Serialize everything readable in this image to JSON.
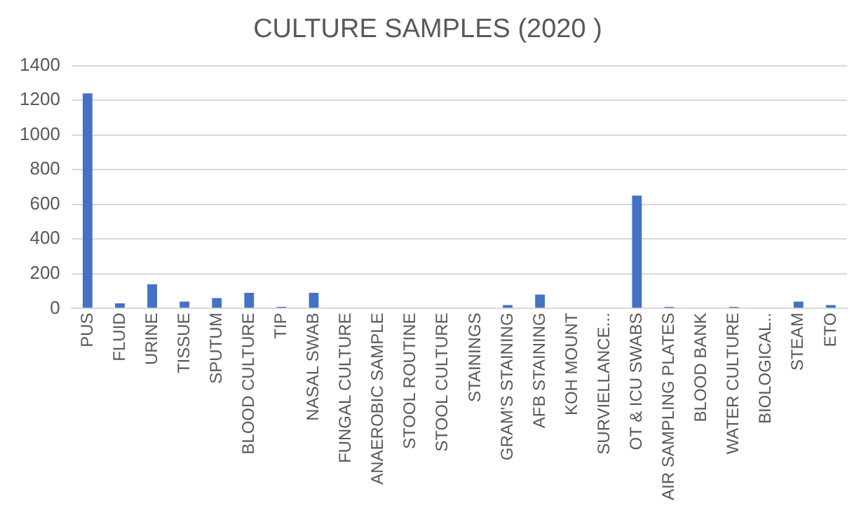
{
  "chart_data": {
    "type": "bar",
    "title": "CULTURE SAMPLES (2020 )",
    "categories": [
      "PUS",
      "FLUID",
      "URINE",
      "TISSUE",
      "SPUTUM",
      "BLOOD CULTURE",
      "TIP",
      "NASAL SWAB",
      "FUNGAL CULTURE",
      "ANAEROBIC SAMPLE",
      "STOOL ROUTINE",
      "STOOL CULTURE",
      "STAININGS",
      "GRAM'S STAINING",
      "AFB STAINING",
      "KOH MOUNT",
      "SURVIELLANCE...",
      "OT & ICU SWABS",
      "AIR SAMPLING PLATES",
      "BLOOD BANK",
      "WATER CULTURE",
      "BIOLOGICAL..",
      "STEAM",
      "ETO"
    ],
    "values": [
      1240,
      30,
      140,
      40,
      60,
      90,
      10,
      90,
      0,
      0,
      0,
      0,
      0,
      20,
      80,
      0,
      0,
      650,
      10,
      0,
      10,
      0,
      40,
      20
    ],
    "color": "#4472c4",
    "ylim": [
      0,
      1400
    ],
    "yticks": [
      0,
      200,
      400,
      600,
      800,
      1000,
      1200,
      1400
    ],
    "grid": "y",
    "legend": false
  }
}
